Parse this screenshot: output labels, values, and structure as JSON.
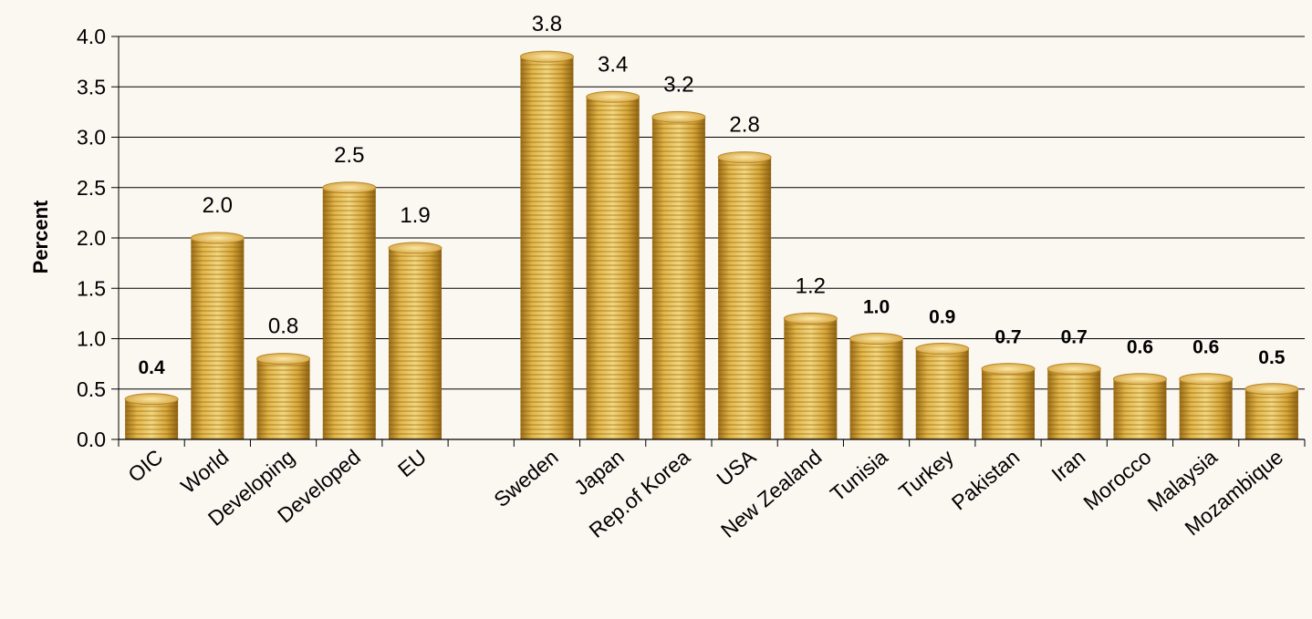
{
  "chart_data": {
    "type": "bar",
    "title": "",
    "xlabel": "",
    "ylabel": "Percent",
    "ylim": [
      0,
      4.0
    ],
    "yticks": [
      "0.0",
      "0.5",
      "1.0",
      "1.5",
      "2.0",
      "2.5",
      "3.0",
      "3.5",
      "4.0"
    ],
    "grid": true,
    "legend": "none",
    "categories": [
      "OIC",
      "World",
      "Developing",
      "Developed",
      "EU",
      "",
      "Sweden",
      "Japan",
      "Rep.of Korea",
      "USA",
      "New Zealand",
      "Tunisia",
      "Turkey",
      "Pakistan",
      "Iran",
      "Morocco",
      "Malaysia",
      "Mozambique"
    ],
    "values": [
      0.4,
      2.0,
      0.8,
      2.5,
      1.9,
      null,
      3.8,
      3.4,
      3.2,
      2.8,
      1.2,
      1.0,
      0.9,
      0.7,
      0.7,
      0.6,
      0.6,
      0.5
    ],
    "data_labels": [
      "0.4",
      "2.0",
      "0.8",
      "2.5",
      "1.9",
      "",
      "3.8",
      "3.4",
      "3.2",
      "2.8",
      "1.2",
      "1.0",
      "0.9",
      "0.7",
      "0.7",
      "0.6",
      "0.6",
      "0.5"
    ],
    "bold_labels": [
      true,
      false,
      false,
      false,
      false,
      false,
      false,
      false,
      false,
      false,
      false,
      true,
      true,
      true,
      true,
      true,
      true,
      true
    ],
    "colors": {
      "bar_light": "#f2d67a",
      "bar_mid": "#d9a93a",
      "bar_dark": "#a9761a",
      "grid": "#000000",
      "text": "#000000"
    }
  }
}
